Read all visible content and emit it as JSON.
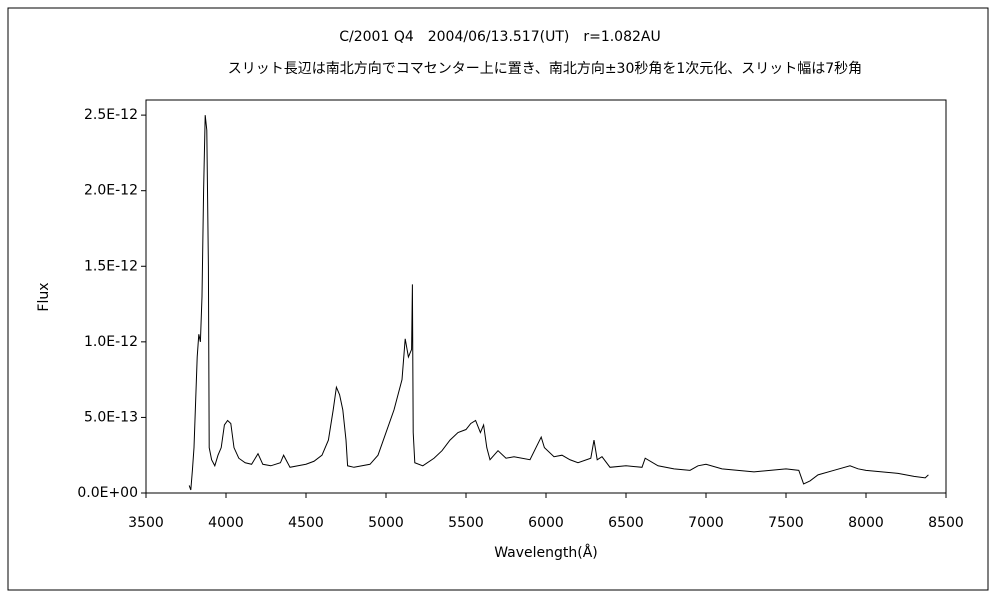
{
  "chart_data": {
    "type": "line",
    "title": "C/2001 Q4　2004/06/13.517(UT)　r=1.082AU",
    "subtitle": "スリット長辺は南北方向でコマセンター上に置き、南北方向±30秒角を1次元化、スリット幅は7秒角",
    "x_label": "Wavelength(Å)",
    "y_label": "Flux",
    "xlim": [
      3500,
      8500
    ],
    "xticks": [
      3500,
      4000,
      4500,
      5000,
      5500,
      6000,
      6500,
      7000,
      7500,
      8000,
      8500
    ],
    "ylim": [
      0,
      2.6e-12
    ],
    "yticks": [
      {
        "value": 0,
        "label": "0.0E+00"
      },
      {
        "value": 5e-13,
        "label": "5.0E-13"
      },
      {
        "value": 1e-12,
        "label": "1.0E-12"
      },
      {
        "value": 1.5e-12,
        "label": "1.5E-12"
      },
      {
        "value": 2e-12,
        "label": "2.0E-12"
      },
      {
        "value": 2.5e-12,
        "label": "2.5E-12"
      }
    ],
    "color": "#000000",
    "x": [
      3770,
      3780,
      3790,
      3800,
      3810,
      3820,
      3830,
      3840,
      3850,
      3860,
      3870,
      3880,
      3890,
      3895,
      3910,
      3930,
      3950,
      3970,
      3990,
      4010,
      4030,
      4050,
      4080,
      4120,
      4160,
      4200,
      4230,
      4280,
      4340,
      4360,
      4400,
      4450,
      4500,
      4550,
      4600,
      4640,
      4670,
      4690,
      4710,
      4730,
      4750,
      4760,
      4800,
      4900,
      4950,
      5000,
      5050,
      5100,
      5120,
      5140,
      5160,
      5165,
      5170,
      5180,
      5230,
      5300,
      5350,
      5400,
      5450,
      5500,
      5530,
      5560,
      5590,
      5610,
      5630,
      5650,
      5700,
      5750,
      5800,
      5900,
      5970,
      5990,
      6050,
      6100,
      6150,
      6200,
      6280,
      6300,
      6320,
      6350,
      6400,
      6500,
      6600,
      6620,
      6700,
      6800,
      6900,
      6950,
      7000,
      7100,
      7200,
      7300,
      7400,
      7500,
      7580,
      7610,
      7650,
      7700,
      7800,
      7900,
      7950,
      8000,
      8100,
      8200,
      8300,
      8370,
      8390
    ],
    "values": [
      5e-14,
      2e-14,
      1.5e-13,
      3e-13,
      6e-13,
      9e-13,
      1.05e-12,
      1e-12,
      1.3e-12,
      2e-12,
      2.5e-12,
      2.4e-12,
      1.5e-12,
      3e-13,
      2.2e-13,
      1.8e-13,
      2.5e-13,
      3e-13,
      4.5e-13,
      4.8e-13,
      4.6e-13,
      3e-13,
      2.3e-13,
      2e-13,
      1.9e-13,
      2.6e-13,
      1.9e-13,
      1.8e-13,
      2e-13,
      2.5e-13,
      1.7e-13,
      1.8e-13,
      1.9e-13,
      2.1e-13,
      2.5e-13,
      3.5e-13,
      5.5e-13,
      7e-13,
      6.5e-13,
      5.5e-13,
      3.5e-13,
      1.8e-13,
      1.7e-13,
      1.9e-13,
      2.5e-13,
      4e-13,
      5.5e-13,
      7.5e-13,
      1.02e-12,
      9e-13,
      9.5e-13,
      1.38e-12,
      4e-13,
      2e-13,
      1.8e-13,
      2.3e-13,
      2.8e-13,
      3.5e-13,
      4e-13,
      4.2e-13,
      4.6e-13,
      4.8e-13,
      4e-13,
      4.5e-13,
      3e-13,
      2.2e-13,
      2.8e-13,
      2.3e-13,
      2.4e-13,
      2.2e-13,
      3.7e-13,
      3e-13,
      2.4e-13,
      2.5e-13,
      2.2e-13,
      2e-13,
      2.3e-13,
      3.5e-13,
      2.2e-13,
      2.4e-13,
      1.7e-13,
      1.8e-13,
      1.7e-13,
      2.3e-13,
      1.8e-13,
      1.6e-13,
      1.5e-13,
      1.8e-13,
      1.9e-13,
      1.6e-13,
      1.5e-13,
      1.4e-13,
      1.5e-13,
      1.6e-13,
      1.5e-13,
      6e-14,
      8e-14,
      1.2e-13,
      1.5e-13,
      1.8e-13,
      1.6e-13,
      1.5e-13,
      1.4e-13,
      1.3e-13,
      1.1e-13,
      1e-13,
      1.2e-13
    ]
  }
}
